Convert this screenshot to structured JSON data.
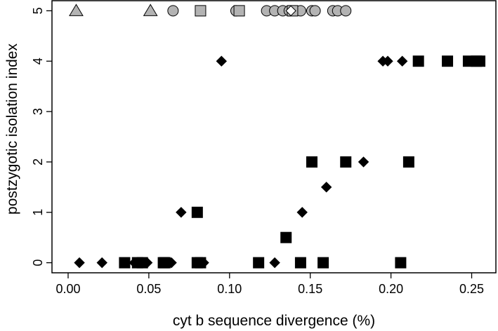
{
  "chart_data": {
    "type": "scatter",
    "xlabel": "cyt b sequence divergence (%)",
    "ylabel": "postzygotic isolation index",
    "xlim": [
      -0.01,
      0.265
    ],
    "ylim": [
      -0.2,
      5.2
    ],
    "x_ticks": [
      "0.00",
      "0.05",
      "0.10",
      "0.15",
      "0.20",
      "0.25"
    ],
    "x_tick_values": [
      0.0,
      0.05,
      0.1,
      0.15,
      0.2,
      0.25
    ],
    "y_ticks": [
      "0",
      "1",
      "2",
      "3",
      "4",
      "5"
    ],
    "y_tick_values": [
      0,
      1,
      2,
      3,
      4,
      5
    ],
    "grid": false,
    "legend": "none",
    "series": [
      {
        "marker": "triangle",
        "color": "#b3b3b3",
        "stroke": "#000000",
        "points": [
          [
            0.005,
            5
          ],
          [
            0.051,
            5
          ]
        ]
      },
      {
        "marker": "circle",
        "color": "#b3b3b3",
        "stroke": "#000000",
        "points": [
          [
            0.065,
            5
          ],
          [
            0.104,
            5
          ],
          [
            0.123,
            5
          ],
          [
            0.128,
            5
          ],
          [
            0.133,
            5
          ],
          [
            0.137,
            5
          ],
          [
            0.144,
            5
          ],
          [
            0.151,
            5
          ],
          [
            0.153,
            5
          ],
          [
            0.164,
            5
          ],
          [
            0.167,
            5
          ],
          [
            0.172,
            5
          ]
        ]
      },
      {
        "marker": "square",
        "color": "#b3b3b3",
        "stroke": "#000000",
        "points": [
          [
            0.082,
            5
          ],
          [
            0.106,
            5
          ],
          [
            0.139,
            5
          ]
        ]
      },
      {
        "marker": "diamond",
        "color": "#ffffff",
        "stroke": "#000000",
        "points": [
          [
            0.138,
            5
          ]
        ]
      },
      {
        "marker": "square",
        "color": "#000000",
        "stroke": "#000000",
        "points": [
          [
            0.035,
            0
          ],
          [
            0.043,
            0
          ],
          [
            0.046,
            0
          ],
          [
            0.059,
            0
          ],
          [
            0.06,
            0
          ],
          [
            0.08,
            0
          ],
          [
            0.082,
            0
          ],
          [
            0.118,
            0
          ],
          [
            0.144,
            0
          ],
          [
            0.158,
            0
          ],
          [
            0.206,
            0
          ],
          [
            0.08,
            1
          ],
          [
            0.135,
            0.5
          ],
          [
            0.151,
            2
          ],
          [
            0.172,
            2
          ],
          [
            0.211,
            2
          ],
          [
            0.217,
            4
          ],
          [
            0.235,
            4
          ],
          [
            0.248,
            4
          ],
          [
            0.253,
            4
          ],
          [
            0.255,
            4
          ]
        ]
      },
      {
        "marker": "diamond",
        "color": "#000000",
        "stroke": "#000000",
        "points": [
          [
            0.007,
            0
          ],
          [
            0.021,
            0
          ],
          [
            0.041,
            0
          ],
          [
            0.049,
            0
          ],
          [
            0.064,
            0
          ],
          [
            0.084,
            0
          ],
          [
            0.128,
            0
          ],
          [
            0.07,
            1
          ],
          [
            0.095,
            4
          ],
          [
            0.145,
            1
          ],
          [
            0.16,
            1.5
          ],
          [
            0.183,
            2
          ],
          [
            0.195,
            4
          ],
          [
            0.198,
            4
          ],
          [
            0.207,
            4
          ]
        ]
      }
    ]
  }
}
